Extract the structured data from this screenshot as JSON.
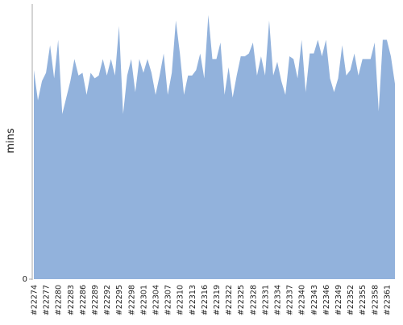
{
  "chart_data": {
    "type": "area",
    "y_label": "mins",
    "color": "#92b2dc",
    "categories": [
      "#22274",
      null,
      null,
      "#22277",
      null,
      null,
      "#22280",
      null,
      null,
      "#22283",
      null,
      null,
      "#22286",
      null,
      null,
      "#22289",
      null,
      null,
      "#22292",
      null,
      null,
      "#22295",
      null,
      null,
      "#22298",
      null,
      null,
      "#22301",
      null,
      null,
      "#22304",
      null,
      null,
      "#22307",
      null,
      null,
      "#22310",
      null,
      null,
      "#22313",
      null,
      null,
      "#22316",
      null,
      null,
      "#22319",
      null,
      null,
      "#22322",
      null,
      null,
      "#22325",
      null,
      null,
      "#22328",
      null,
      null,
      "#22331",
      null,
      null,
      "#22334",
      null,
      null,
      "#22337",
      null,
      null,
      "#22340",
      null,
      null,
      "#22343",
      null,
      null,
      "#22346",
      null,
      null,
      "#22349",
      null,
      null,
      "#22352",
      null,
      null,
      "#22355",
      null,
      null,
      "#22358",
      null,
      null,
      "#22361",
      null,
      null
    ],
    "values": [
      76,
      65,
      72,
      75,
      85,
      73,
      87,
      60,
      66,
      72,
      80,
      74,
      75,
      67,
      75,
      73,
      74,
      80,
      74,
      80,
      74,
      92,
      60,
      74,
      80,
      68,
      80,
      75,
      80,
      75,
      67,
      74,
      82,
      67,
      75,
      94,
      82,
      67,
      74,
      74,
      76,
      82,
      73,
      96,
      80,
      80,
      86,
      67,
      77,
      66,
      74,
      81,
      81,
      82,
      86,
      74,
      81,
      74,
      94,
      74,
      79,
      72,
      67,
      81,
      80,
      73,
      87,
      68,
      82,
      82,
      87,
      81,
      87,
      73,
      68,
      73,
      85,
      74,
      76,
      82,
      74,
      80,
      80,
      80,
      86,
      61,
      87,
      87,
      81,
      71
    ],
    "ylim": [
      0,
      100
    ],
    "yticks": [
      0
    ]
  }
}
